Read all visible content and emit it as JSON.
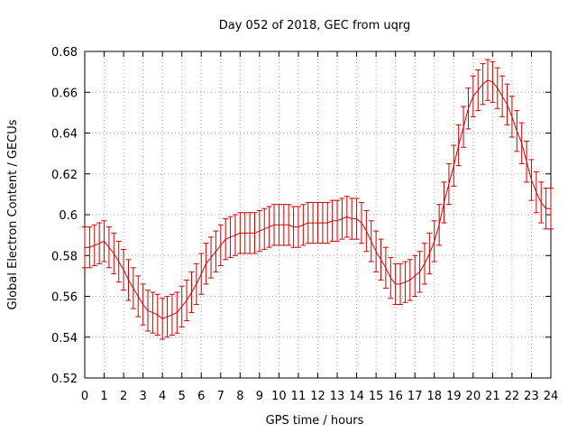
{
  "chart_data": {
    "type": "line",
    "title": "Day 052 of 2018, GEC from uqrg",
    "xlabel": "GPS time / hours",
    "ylabel": "Global Electron Content / GECUs",
    "xlim": [
      0,
      24
    ],
    "ylim": [
      0.52,
      0.68
    ],
    "x_ticks": [
      "0",
      "1",
      "2",
      "3",
      "4",
      "5",
      "6",
      "7",
      "8",
      "9",
      "10",
      "11",
      "12",
      "13",
      "14",
      "15",
      "16",
      "17",
      "18",
      "19",
      "20",
      "21",
      "22",
      "23",
      "24"
    ],
    "y_ticks": [
      "0.52",
      "0.54",
      "0.56",
      "0.58",
      "0.6",
      "0.62",
      "0.64",
      "0.66",
      "0.68"
    ],
    "grid": true,
    "series": [
      {
        "color": "#cc0000",
        "error": 0.01,
        "x": [
          0,
          0.25,
          0.5,
          0.75,
          1,
          1.25,
          1.5,
          1.75,
          2,
          2.25,
          2.5,
          2.75,
          3,
          3.25,
          3.5,
          3.75,
          4,
          4.25,
          4.5,
          4.75,
          5,
          5.25,
          5.5,
          5.75,
          6,
          6.25,
          6.5,
          6.75,
          7,
          7.25,
          7.5,
          7.75,
          8,
          8.25,
          8.5,
          8.75,
          9,
          9.25,
          9.5,
          9.75,
          10,
          10.25,
          10.5,
          10.75,
          11,
          11.25,
          11.5,
          11.75,
          12,
          12.25,
          12.5,
          12.75,
          13,
          13.25,
          13.5,
          13.75,
          14,
          14.25,
          14.5,
          14.75,
          15,
          15.25,
          15.5,
          15.75,
          16,
          16.25,
          16.5,
          16.75,
          17,
          17.25,
          17.5,
          17.75,
          18,
          18.25,
          18.5,
          18.75,
          19,
          19.25,
          19.5,
          19.75,
          20,
          20.25,
          20.5,
          20.75,
          21,
          21.25,
          21.5,
          21.75,
          22,
          22.25,
          22.5,
          22.75,
          23,
          23.25,
          23.5,
          23.75,
          24
        ],
        "y": [
          0.584,
          0.584,
          0.585,
          0.586,
          0.587,
          0.584,
          0.581,
          0.577,
          0.573,
          0.568,
          0.564,
          0.56,
          0.556,
          0.553,
          0.552,
          0.551,
          0.549,
          0.55,
          0.551,
          0.552,
          0.555,
          0.558,
          0.562,
          0.566,
          0.571,
          0.576,
          0.579,
          0.582,
          0.585,
          0.588,
          0.589,
          0.59,
          0.591,
          0.591,
          0.591,
          0.591,
          0.592,
          0.593,
          0.594,
          0.595,
          0.595,
          0.595,
          0.595,
          0.594,
          0.594,
          0.595,
          0.596,
          0.596,
          0.596,
          0.596,
          0.596,
          0.597,
          0.597,
          0.598,
          0.599,
          0.598,
          0.598,
          0.596,
          0.592,
          0.587,
          0.582,
          0.578,
          0.574,
          0.569,
          0.566,
          0.566,
          0.567,
          0.568,
          0.57,
          0.572,
          0.576,
          0.581,
          0.587,
          0.595,
          0.606,
          0.615,
          0.624,
          0.634,
          0.643,
          0.652,
          0.658,
          0.661,
          0.664,
          0.666,
          0.665,
          0.662,
          0.658,
          0.654,
          0.648,
          0.641,
          0.635,
          0.626,
          0.617,
          0.611,
          0.606,
          0.603,
          0.603
        ]
      }
    ]
  }
}
